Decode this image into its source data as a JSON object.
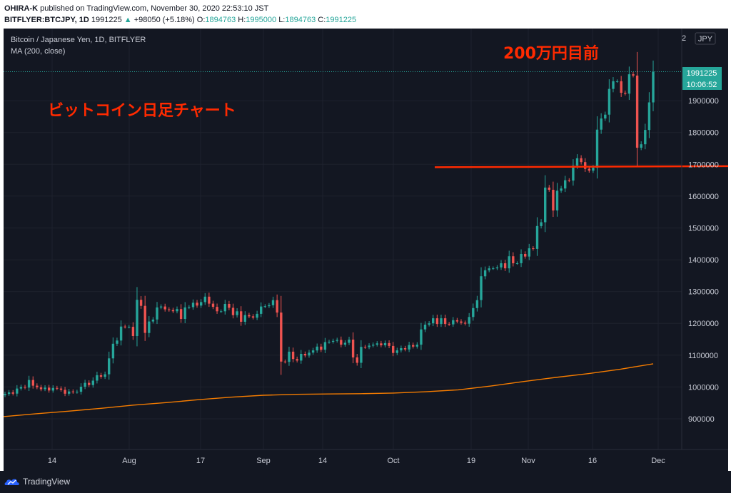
{
  "header": {
    "line1": {
      "author": "OHIRA-K",
      "text": "published on TradingView.com, November 30, 2020 22:53:10 JST"
    },
    "line2": {
      "symbol": "BITFLYER:BTCJPY, 1D",
      "price": "1991225",
      "arrow": "▲",
      "change": "+98050 (+5.18%)",
      "o_label": "O:",
      "o_val": "1894763",
      "h_label": "H:",
      "h_val": "1995000",
      "l_label": "L:",
      "l_val": "1894763",
      "c_label": "C:",
      "c_val": "1991225"
    }
  },
  "legend": {
    "title": "Bitcoin / Japanese Yen, 1D, BITFLYER",
    "ma": "MA (200, close)"
  },
  "annotations": {
    "title_jp": "ビットコイン日足チャート",
    "target_jp": "200万円目前"
  },
  "price_axis": {
    "currency": "JPY",
    "top_partial": "2",
    "current_price": "1991225",
    "countdown": "10:06:52"
  },
  "footer": {
    "brand": "TradingView"
  },
  "colors": {
    "bg": "#131722",
    "up": "#26a69a",
    "down": "#ef5350",
    "ma": "#f57c00",
    "annot": "#ff2a00",
    "grid": "#1e222d"
  },
  "chart_data": {
    "type": "candlestick",
    "title": "Bitcoin / Japanese Yen, 1D, BITFLYER",
    "x_ticks": [
      "14",
      "Aug",
      "17",
      "Sep",
      "14",
      "Oct",
      "19",
      "Nov",
      "16",
      "Dec"
    ],
    "y_ticks": [
      900000,
      1000000,
      1100000,
      1200000,
      1300000,
      1400000,
      1500000,
      1600000,
      1700000,
      1800000,
      1900000
    ],
    "ylim": [
      820000,
      2010000
    ],
    "horizontal_line": 1695000,
    "last_close_line": 1991225,
    "series": [
      {
        "name": "BTCJPY",
        "close": [
          978000,
          983000,
          979000,
          995000,
          1000000,
          998000,
          1022000,
          1004000,
          999000,
          993000,
          998000,
          989000,
          997000,
          995000,
          991000,
          979000,
          986000,
          984000,
          985000,
          1001000,
          1013000,
          1006000,
          1020000,
          1037000,
          1032000,
          1040000,
          1090000,
          1136000,
          1146000,
          1190000,
          1189000,
          1189000,
          1160000,
          1274000,
          1255000,
          1170000,
          1206000,
          1212000,
          1250000,
          1253000,
          1244000,
          1242000,
          1238000,
          1245000,
          1214000,
          1250000,
          1251000,
          1265000,
          1256000,
          1267000,
          1284000,
          1262000,
          1252000,
          1238000,
          1238000,
          1261000,
          1249000,
          1226000,
          1238000,
          1205000,
          1226000,
          1222000,
          1218000,
          1230000,
          1253000,
          1254000,
          1257000,
          1273000,
          1234000,
          1080000,
          1079000,
          1111000,
          1088000,
          1083000,
          1104000,
          1099000,
          1108000,
          1115000,
          1127000,
          1117000,
          1141000,
          1142000,
          1145000,
          1148000,
          1133000,
          1139000,
          1149000,
          1093000,
          1076000,
          1126000,
          1125000,
          1130000,
          1133000,
          1137000,
          1131000,
          1138000,
          1129000,
          1107000,
          1115000,
          1122000,
          1118000,
          1132000,
          1127000,
          1133000,
          1181000,
          1196000,
          1200000,
          1216000,
          1198000,
          1216000,
          1198000,
          1197000,
          1210000,
          1206000,
          1202000,
          1199000,
          1220000,
          1248000,
          1273000,
          1348000,
          1367000,
          1373000,
          1373000,
          1376000,
          1389000,
          1373000,
          1411000,
          1389000,
          1389000,
          1418000,
          1410000,
          1436000,
          1434000,
          1506000,
          1518000,
          1627000,
          1620000,
          1555000,
          1617000,
          1624000,
          1650000,
          1649000,
          1696000,
          1719000,
          1707000,
          1686000,
          1680000,
          1689000,
          1809000,
          1844000,
          1856000,
          1937000,
          1961000,
          1961000,
          1925000,
          1922000,
          1983000,
          1979000,
          1752000,
          1763000,
          1808000,
          1894763,
          1991225
        ]
      },
      {
        "name": "MA (200, close)",
        "x_fraction": [
          0,
          0.05,
          0.1,
          0.15,
          0.2,
          0.25,
          0.3,
          0.35,
          0.4,
          0.45,
          0.5,
          0.55,
          0.6,
          0.65,
          0.7,
          0.75,
          0.8,
          0.85,
          0.9,
          0.95,
          1.0
        ],
        "values": [
          907000,
          916000,
          924000,
          933000,
          943000,
          951000,
          960000,
          968000,
          974000,
          977000,
          978000,
          979000,
          981000,
          985000,
          991000,
          1003000,
          1017000,
          1030000,
          1042000,
          1056000,
          1073000
        ]
      }
    ]
  }
}
